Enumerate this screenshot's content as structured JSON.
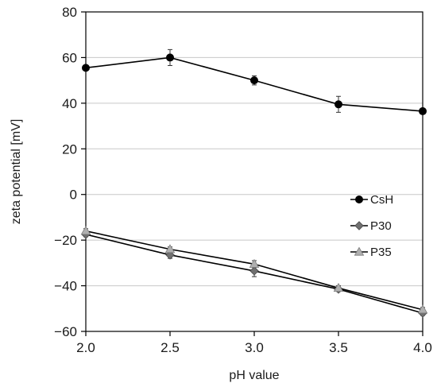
{
  "chart_data": {
    "type": "line",
    "title": "",
    "xlabel": "pH value",
    "ylabel": "zeta potential [mV]",
    "x": [
      2.0,
      2.5,
      3.0,
      3.5,
      4.0
    ],
    "x_tick_labels": [
      "2.0",
      "2.5",
      "3.0",
      "3.5",
      "4.0"
    ],
    "xlim": [
      2.0,
      4.0
    ],
    "ylim": [
      -60,
      80
    ],
    "y_ticks": [
      -60,
      -40,
      -20,
      0,
      20,
      40,
      60,
      80
    ],
    "y_tick_labels": [
      "−60",
      "−40",
      "−20",
      "0",
      "20",
      "40",
      "60",
      "80"
    ],
    "grid": "horizontal",
    "legend_position": "right",
    "series": [
      {
        "name": "CsH",
        "marker": "circle",
        "color": "#000000",
        "values": [
          55.5,
          60.0,
          50.0,
          39.5,
          36.5
        ],
        "errors": [
          0,
          3.5,
          2.0,
          3.5,
          0
        ]
      },
      {
        "name": "P30",
        "marker": "diamond",
        "color": "#707070",
        "values": [
          -17.5,
          -26.5,
          -33.5,
          -41.5,
          -52.0
        ],
        "errors": [
          1.0,
          1.5,
          2.5,
          1.0,
          1.0
        ]
      },
      {
        "name": "P35",
        "marker": "triangle",
        "color": "#b0b0b0",
        "values": [
          -16.0,
          -24.0,
          -30.5,
          -41.0,
          -50.5
        ],
        "errors": [
          1.0,
          1.0,
          1.5,
          1.0,
          1.0
        ]
      }
    ]
  }
}
